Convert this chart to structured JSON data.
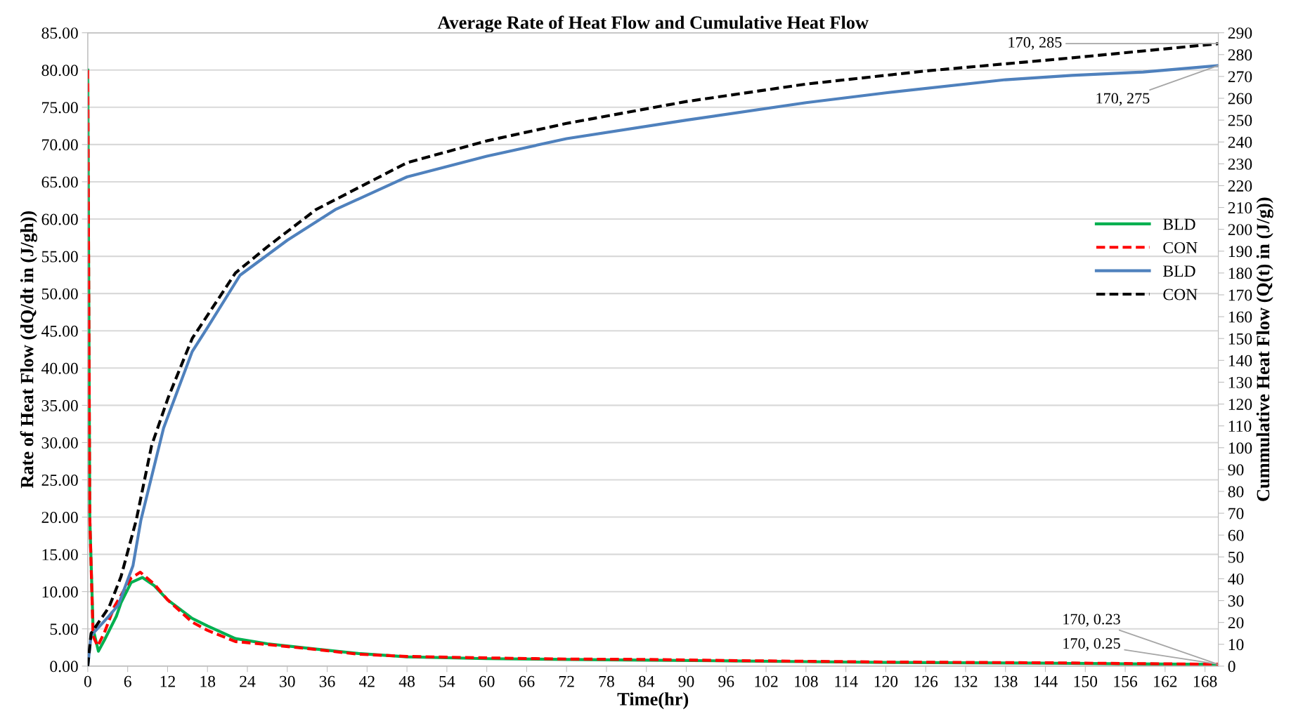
{
  "chart_data": {
    "type": "line",
    "title": "Average Rate of Heat Flow and Cumulative Heat Flow",
    "xlabel": "Time(hr)",
    "ylabel": "Rate of Heat Flow (dQ/dt in (J/gh))",
    "y2label": "Cummulative Heat Flow (Q(t) in (J/g))",
    "xlim": [
      0,
      170
    ],
    "xticks": [
      0,
      6,
      12,
      18,
      24,
      30,
      36,
      42,
      48,
      54,
      60,
      66,
      72,
      78,
      84,
      90,
      96,
      102,
      108,
      114,
      120,
      126,
      132,
      138,
      144,
      150,
      156,
      162,
      168
    ],
    "ylim": [
      0,
      85
    ],
    "yticks": [
      {
        "value": 0,
        "label": "0.00"
      },
      {
        "value": 5,
        "label": "5.00"
      },
      {
        "value": 10,
        "label": "10.00"
      },
      {
        "value": 15,
        "label": "15.00"
      },
      {
        "value": 20,
        "label": "20.00"
      },
      {
        "value": 25,
        "label": "25.00"
      },
      {
        "value": 30,
        "label": "30.00"
      },
      {
        "value": 35,
        "label": "35.00"
      },
      {
        "value": 40,
        "label": "40.00"
      },
      {
        "value": 45,
        "label": "45.00"
      },
      {
        "value": 50,
        "label": "50.00"
      },
      {
        "value": 55,
        "label": "55.00"
      },
      {
        "value": 60,
        "label": "60.00"
      },
      {
        "value": 65,
        "label": "65.00"
      },
      {
        "value": 70,
        "label": "70.00"
      },
      {
        "value": 75,
        "label": "75.00"
      },
      {
        "value": 80,
        "label": "80.00"
      },
      {
        "value": 85,
        "label": "85.00"
      }
    ],
    "y2lim": [
      0,
      290
    ],
    "y2ticks": [
      0,
      10,
      20,
      30,
      40,
      50,
      60,
      70,
      80,
      90,
      100,
      110,
      120,
      130,
      140,
      150,
      160,
      170,
      180,
      190,
      200,
      210,
      220,
      230,
      240,
      250,
      260,
      270,
      280,
      290
    ],
    "grid": "y",
    "legend": "right",
    "marker": "none",
    "series": [
      {
        "name": "BLD",
        "color": "#00b050",
        "line_style": "solid",
        "x": [
          0,
          0.3,
          0.8,
          1.6,
          2.5,
          4.3,
          5,
          6.5,
          8.2,
          10,
          12,
          15.7,
          18,
          22.2,
          27,
          33.6,
          40.7,
          48,
          60,
          72,
          84,
          96,
          108,
          120,
          132,
          144,
          156,
          170
        ],
        "values": [
          80,
          20,
          5,
          2.0,
          3.5,
          6.7,
          8.5,
          11.2,
          11.9,
          10.8,
          8.9,
          6.4,
          5.4,
          3.7,
          3.0,
          2.35,
          1.7,
          1.25,
          1.0,
          0.9,
          0.8,
          0.7,
          0.6,
          0.5,
          0.45,
          0.4,
          0.3,
          0.23
        ],
        "value_labels": [
          null,
          null,
          null,
          null,
          null,
          null,
          null,
          null,
          null,
          null,
          null,
          null,
          null,
          null,
          null,
          null,
          null,
          null,
          null,
          null,
          null,
          null,
          null,
          null,
          null,
          null,
          null,
          "170, 0.23"
        ]
      },
      {
        "name": "CON",
        "color": "#ff0000",
        "line_style": "dashed",
        "x": [
          0,
          0.3,
          0.8,
          1.5,
          2.5,
          4,
          5,
          6.5,
          7.9,
          10,
          12,
          15.7,
          18,
          22.2,
          27,
          33.6,
          40.7,
          48,
          60,
          72,
          84,
          96,
          108,
          120,
          132,
          144,
          156,
          170
        ],
        "values": [
          80,
          20,
          4,
          2.7,
          4.5,
          8.0,
          9.5,
          11.8,
          12.6,
          11.0,
          8.9,
          5.9,
          4.8,
          3.3,
          2.9,
          2.3,
          1.6,
          1.3,
          1.1,
          0.95,
          0.9,
          0.75,
          0.65,
          0.55,
          0.5,
          0.45,
          0.35,
          0.25
        ],
        "value_labels": [
          null,
          null,
          null,
          null,
          null,
          null,
          null,
          null,
          null,
          null,
          null,
          null,
          null,
          null,
          null,
          null,
          null,
          null,
          null,
          null,
          null,
          null,
          null,
          null,
          null,
          null,
          null,
          "170, 0.25"
        ]
      },
      {
        "name": "BLD",
        "color": "#4f81bd",
        "line_style": "solid",
        "axis": "y2",
        "x": [
          0,
          0.5,
          3.2,
          4.6,
          6.8,
          8,
          11.4,
          15.7,
          18,
          22.9,
          30,
          37.2,
          48,
          60,
          72,
          90,
          108,
          120,
          138,
          148,
          158.7,
          170
        ],
        "values": [
          0,
          14,
          23,
          28,
          46,
          67,
          109,
          144,
          155,
          179,
          195,
          209,
          224,
          233.5,
          241.5,
          250,
          258,
          262.5,
          268.5,
          270.5,
          272,
          275
        ],
        "value_labels": [
          null,
          null,
          null,
          null,
          null,
          null,
          null,
          null,
          null,
          null,
          null,
          null,
          null,
          null,
          null,
          null,
          null,
          null,
          null,
          null,
          null,
          "170, 275"
        ]
      },
      {
        "name": "CON",
        "color": "#000000",
        "line_style": "dashed",
        "axis": "y2",
        "x": [
          0,
          0.5,
          3.2,
          5,
          7.3,
          9.6,
          12.1,
          15.7,
          22.2,
          27,
          34.3,
          48,
          60,
          72,
          90,
          108,
          126,
          148,
          170
        ],
        "values": [
          0,
          15,
          27,
          41,
          67,
          101,
          123,
          150,
          180,
          192,
          209,
          230.5,
          240.5,
          248.5,
          258.5,
          266.5,
          272.5,
          278.5,
          285
        ],
        "value_labels": [
          null,
          null,
          null,
          null,
          null,
          null,
          null,
          null,
          null,
          null,
          null,
          null,
          null,
          null,
          null,
          null,
          null,
          null,
          "170, 285"
        ]
      }
    ]
  }
}
